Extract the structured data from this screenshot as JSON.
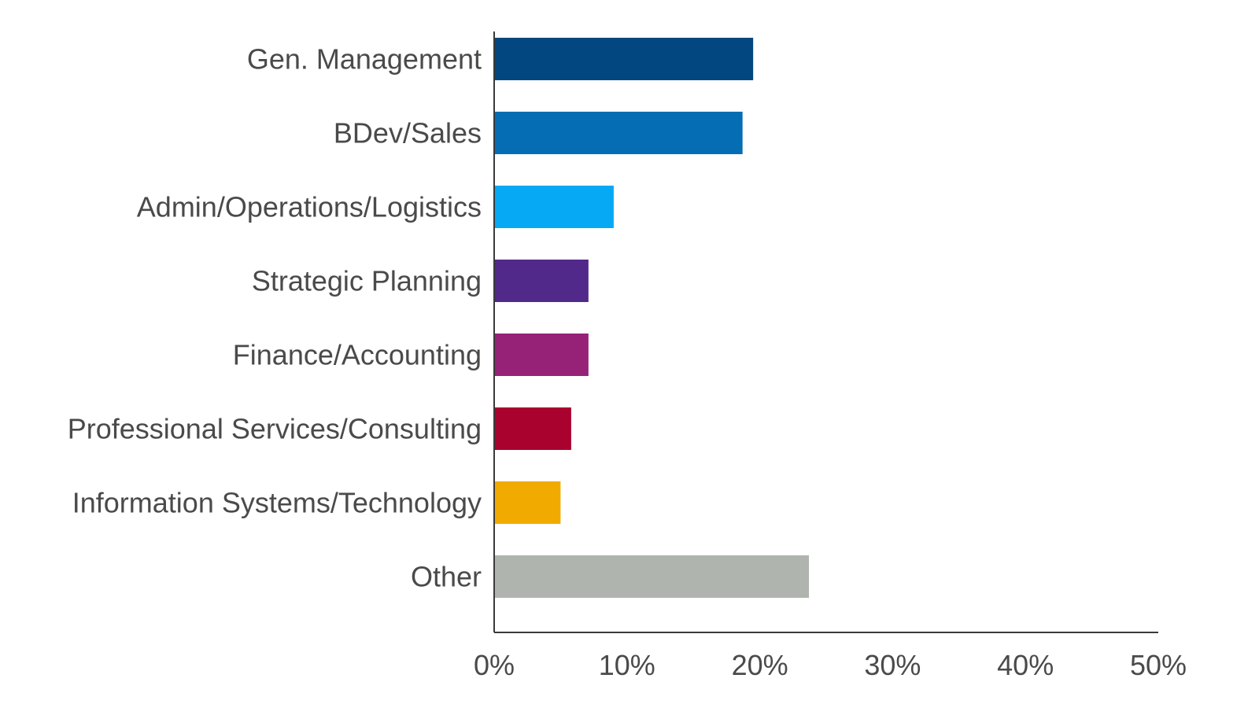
{
  "chart_data": {
    "type": "bar",
    "orientation": "horizontal",
    "title": "",
    "xlabel": "",
    "ylabel": "",
    "xlim": [
      0,
      50
    ],
    "grid": false,
    "legend": "none",
    "categories": [
      "Gen. Management",
      "BDev/Sales",
      "Admin/Operations/Logistics",
      "Strategic Planning",
      "Finance/Accounting",
      "Professional Services/Consulting",
      "Information Systems/Technology",
      "Other"
    ],
    "values": [
      19.5,
      18.7,
      9,
      7.1,
      7.1,
      5.8,
      5,
      23.7
    ],
    "colors": [
      "#02477f",
      "#056db4",
      "#05a9f4",
      "#51298a",
      "#962278",
      "#a9022f",
      "#f1ab00",
      "#afb4ae"
    ],
    "ticks": [
      0,
      10,
      20,
      30,
      40,
      50
    ],
    "tick_labels": [
      "0%",
      "10%",
      "20%",
      "30%",
      "40%",
      "50%"
    ]
  }
}
